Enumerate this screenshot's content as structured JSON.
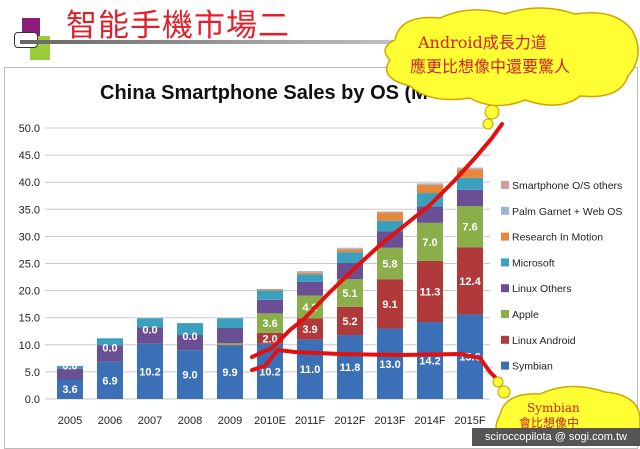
{
  "slide": {
    "title": "智能手機市場二",
    "footer": "sciroccopilota  @ sogi.com.tw"
  },
  "callouts": {
    "android": [
      "Android成長力道",
      "應更比想像中還要驚人"
    ],
    "symbian": [
      "Symbian",
      "會比想像中"
    ]
  },
  "chart_data": {
    "type": "stacked-bar",
    "title": "China Smartphone Sales by OS (M",
    "categories": [
      "2005",
      "2006",
      "2007",
      "2008",
      "2009",
      "2010E",
      "2011F",
      "2012F",
      "2013F",
      "2014F",
      "2015F"
    ],
    "ylim": [
      0,
      50
    ],
    "yticks": [
      "0.0",
      "5.0",
      "10.0",
      "15.0",
      "20.0",
      "25.0",
      "30.0",
      "35.0",
      "40.0",
      "45.0",
      "50.0"
    ],
    "grid": true,
    "legend_position": "right",
    "series": [
      {
        "name": "Symbian",
        "color": "#3b6fb6",
        "values": [
          3.6,
          6.9,
          10.2,
          9.0,
          9.9,
          10.2,
          11.0,
          11.8,
          13.0,
          14.2,
          15.6
        ],
        "labels": [
          "3.6",
          "6.9",
          "10.2",
          "9.0",
          "9.9",
          "10.2",
          "11.0",
          "11.8",
          "13.0",
          "14.2",
          "15.6"
        ]
      },
      {
        "name": "Linux Android",
        "color": "#b03a3a",
        "values": [
          0,
          0,
          0,
          0,
          0.1,
          2.0,
          3.9,
          5.2,
          9.1,
          11.3,
          12.4
        ],
        "labels": [
          "0.0",
          "0.0",
          "0.0",
          "0.0",
          "0.1",
          "2.0",
          "3.9",
          "5.2",
          "9.1",
          "11.3",
          "12.4"
        ]
      },
      {
        "name": "Apple",
        "color": "#8aae4a",
        "values": [
          0,
          0,
          0,
          0,
          0.3,
          3.6,
          4.2,
          5.1,
          5.8,
          7.0,
          7.6
        ],
        "labels": [
          "",
          "",
          "",
          "",
          "0.3",
          "3.6",
          "4.2",
          "5.1",
          "5.8",
          "7.0",
          "7.6"
        ]
      },
      {
        "name": "Linux Others",
        "color": "#6a4f94",
        "values": [
          2.0,
          3.0,
          3.0,
          2.8,
          2.8,
          2.5,
          2.5,
          3.0,
          3.0,
          3.0,
          3.0
        ]
      },
      {
        "name": "Microsoft",
        "color": "#3aa0bd",
        "values": [
          0.5,
          1.3,
          1.7,
          2.2,
          1.8,
          1.7,
          1.4,
          2.0,
          2.0,
          2.5,
          2.2
        ]
      },
      {
        "name": "Research In Motion",
        "color": "#e8863a",
        "values": [
          0,
          0,
          0,
          0,
          0,
          0.2,
          0.3,
          0.5,
          1.5,
          1.5,
          1.6
        ]
      },
      {
        "name": "Palm Garnet + Web OS",
        "color": "#9ab3dc",
        "values": [
          0,
          0,
          0,
          0,
          0,
          0.1,
          0.2,
          0.2,
          0.1,
          0.2,
          0.2
        ]
      },
      {
        "name": "Smartphone O/S others",
        "color": "#d99a9a",
        "values": [
          0,
          0,
          0,
          0,
          0,
          0,
          0.1,
          0.1,
          0.1,
          0.1,
          0.1
        ]
      }
    ]
  }
}
